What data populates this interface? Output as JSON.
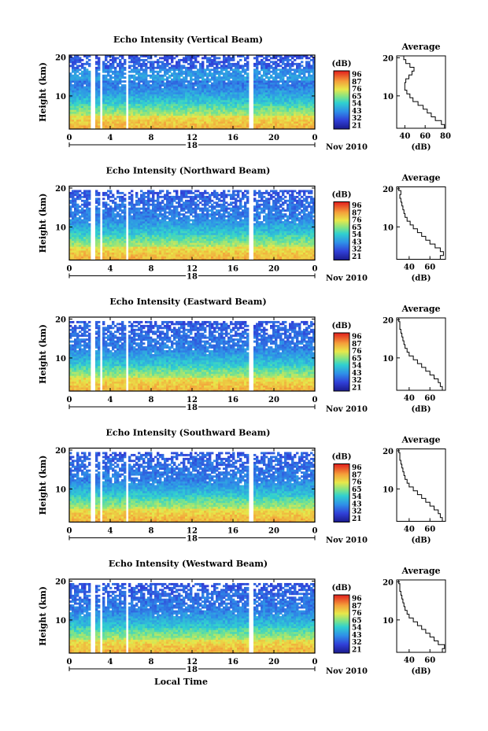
{
  "chart_data": [
    {
      "type": "heatmap",
      "title": "Echo Intensity (Vertical Beam)",
      "ylabel": "Height (km)",
      "colorbar_label": "(dB)",
      "x_ticks": [
        "0",
        "4",
        "8",
        "12",
        "16",
        "20",
        "0"
      ],
      "y_ticks": [
        "20",
        "10"
      ],
      "date_day": "18",
      "date_label": "Nov 2010",
      "xlim": [
        0,
        24
      ],
      "ylim": [
        1.5,
        20.5
      ],
      "gaps": [
        [
          2.0,
          2.5
        ],
        [
          3.0,
          3.3
        ],
        [
          5.5,
          5.8
        ],
        [
          17.6,
          17.9
        ]
      ],
      "high_echo_heights_km": [
        2,
        5
      ],
      "avg_profile": {
        "title": "Average",
        "xlabel": "(dB)",
        "xticks": [
          "40",
          "60",
          "80"
        ],
        "xlim": [
          32,
          80
        ],
        "ylim": [
          1.5,
          20.5
        ],
        "heights": [
          2,
          3,
          4,
          5,
          6,
          7,
          8,
          9,
          10,
          11,
          12,
          13,
          14,
          15,
          16,
          17,
          18,
          19,
          20
        ],
        "values": [
          79,
          76,
          70,
          66,
          62,
          58,
          53,
          48,
          45,
          42,
          40,
          40,
          41,
          44,
          47,
          49,
          45,
          41,
          39
        ]
      },
      "colorbar": {
        "ticks": [
          "96",
          "87",
          "76",
          "65",
          "54",
          "43",
          "32",
          "21"
        ]
      }
    },
    {
      "type": "heatmap",
      "title": "Echo Intensity (Northward Beam)",
      "ylabel": "Height (km)",
      "colorbar_label": "(dB)",
      "x_ticks": [
        "0",
        "4",
        "8",
        "12",
        "16",
        "20",
        "0"
      ],
      "y_ticks": [
        "20",
        "10"
      ],
      "date_day": "18",
      "date_label": "Nov 2010",
      "xlim": [
        0,
        24
      ],
      "ylim": [
        1.5,
        20.5
      ],
      "gaps": [
        [
          2.0,
          2.5
        ],
        [
          3.0,
          3.3
        ],
        [
          5.5,
          5.8
        ],
        [
          17.6,
          17.9
        ]
      ],
      "high_echo_heights_km": [
        2,
        5
      ],
      "avg_profile": {
        "title": "Average",
        "xlabel": "(dB)",
        "xticks": [
          "40",
          "60"
        ],
        "xlim": [
          28,
          75
        ],
        "ylim": [
          1.5,
          20.5
        ],
        "heights": [
          2,
          3,
          4,
          5,
          6,
          7,
          8,
          9,
          10,
          11,
          12,
          13,
          14,
          15,
          16,
          17,
          18,
          19,
          20
        ],
        "values": [
          70,
          73,
          70,
          65,
          60,
          56,
          52,
          48,
          44,
          41,
          38,
          36,
          35,
          34,
          33,
          32,
          31,
          32,
          30
        ]
      },
      "colorbar": {
        "ticks": [
          "96",
          "87",
          "76",
          "65",
          "54",
          "43",
          "32",
          "21"
        ]
      }
    },
    {
      "type": "heatmap",
      "title": "Echo Intensity (Eastward Beam)",
      "ylabel": "Height (km)",
      "colorbar_label": "(dB)",
      "x_ticks": [
        "0",
        "4",
        "8",
        "12",
        "16",
        "20",
        "0"
      ],
      "y_ticks": [
        "20",
        "10"
      ],
      "date_day": "18",
      "date_label": "Nov 2010",
      "xlim": [
        0,
        24
      ],
      "ylim": [
        1.5,
        20.5
      ],
      "gaps": [
        [
          2.0,
          2.5
        ],
        [
          3.0,
          3.3
        ],
        [
          5.5,
          5.8
        ],
        [
          17.6,
          17.9
        ]
      ],
      "high_echo_heights_km": [
        2,
        5
      ],
      "avg_profile": {
        "title": "Average",
        "xlabel": "(dB)",
        "xticks": [
          "40",
          "60"
        ],
        "xlim": [
          28,
          75
        ],
        "ylim": [
          1.5,
          20.5
        ],
        "heights": [
          2,
          3,
          4,
          5,
          6,
          7,
          8,
          9,
          10,
          11,
          12,
          13,
          14,
          15,
          16,
          17,
          18,
          19,
          20
        ],
        "values": [
          72,
          70,
          68,
          64,
          60,
          56,
          52,
          48,
          44,
          40,
          38,
          36,
          35,
          34,
          33,
          32,
          31,
          31,
          30
        ]
      },
      "colorbar": {
        "ticks": [
          "96",
          "87",
          "76",
          "65",
          "54",
          "43",
          "32",
          "21"
        ]
      }
    },
    {
      "type": "heatmap",
      "title": "Echo Intensity (Southward Beam)",
      "ylabel": "Height (km)",
      "colorbar_label": "(dB)",
      "x_ticks": [
        "0",
        "4",
        "8",
        "12",
        "16",
        "20",
        "0"
      ],
      "y_ticks": [
        "20",
        "10"
      ],
      "date_day": "18",
      "date_label": "Nov 2010",
      "xlim": [
        0,
        24
      ],
      "ylim": [
        1.5,
        20.5
      ],
      "gaps": [
        [
          2.0,
          2.5
        ],
        [
          3.0,
          3.3
        ],
        [
          5.5,
          5.8
        ],
        [
          17.6,
          17.9
        ]
      ],
      "high_echo_heights_km": [
        2,
        5
      ],
      "avg_profile": {
        "title": "Average",
        "xlabel": "(dB)",
        "xticks": [
          "40",
          "60"
        ],
        "xlim": [
          28,
          75
        ],
        "ylim": [
          1.5,
          20.5
        ],
        "heights": [
          2,
          3,
          4,
          5,
          6,
          7,
          8,
          9,
          10,
          11,
          12,
          13,
          14,
          15,
          16,
          17,
          18,
          19,
          20
        ],
        "values": [
          72,
          70,
          68,
          64,
          60,
          56,
          52,
          48,
          44,
          40,
          38,
          36,
          35,
          34,
          33,
          32,
          31,
          31,
          30
        ]
      },
      "colorbar": {
        "ticks": [
          "96",
          "87",
          "76",
          "65",
          "54",
          "43",
          "32",
          "21"
        ]
      }
    },
    {
      "type": "heatmap",
      "title": "Echo Intensity (Westward Beam)",
      "ylabel": "Height (km)",
      "colorbar_label": "(dB)",
      "x_ticks": [
        "0",
        "4",
        "8",
        "12",
        "16",
        "20",
        "0"
      ],
      "y_ticks": [
        "20",
        "10"
      ],
      "date_day": "18",
      "date_label": "Nov 2010",
      "xlabel": "Local Time",
      "xlim": [
        0,
        24
      ],
      "ylim": [
        1.5,
        20.5
      ],
      "gaps": [
        [
          2.0,
          2.5
        ],
        [
          3.0,
          3.3
        ],
        [
          5.5,
          5.8
        ],
        [
          17.6,
          17.9
        ]
      ],
      "high_echo_heights_km": [
        2,
        5
      ],
      "avg_profile": {
        "title": "Average",
        "xlabel": "(dB)",
        "xticks": [
          "40",
          "60"
        ],
        "xlim": [
          28,
          75
        ],
        "ylim": [
          1.5,
          20.5
        ],
        "heights": [
          2,
          3,
          4,
          5,
          6,
          7,
          8,
          9,
          10,
          11,
          12,
          13,
          14,
          15,
          16,
          17,
          18,
          19,
          20
        ],
        "values": [
          72,
          74,
          68,
          64,
          60,
          56,
          52,
          48,
          44,
          40,
          38,
          36,
          35,
          34,
          33,
          32,
          31,
          31,
          30
        ]
      },
      "colorbar": {
        "ticks": [
          "96",
          "87",
          "76",
          "65",
          "54",
          "43",
          "32",
          "21"
        ]
      }
    }
  ]
}
